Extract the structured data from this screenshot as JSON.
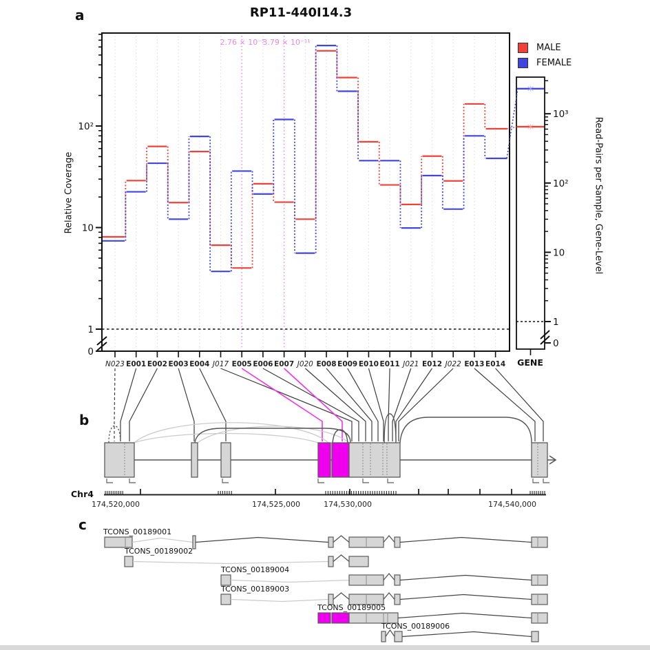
{
  "figure": {
    "panel_a": "a",
    "panel_b": "b",
    "panel_c": "c"
  },
  "chart_data": {
    "type": "line",
    "subtype": "exon-level step coverage, log y-scale, with gene-level side panel",
    "title": "RP11-440I14.3",
    "x_categories": [
      "N023",
      "E001",
      "E002",
      "E003",
      "E004",
      "J017",
      "E005",
      "E006",
      "E007",
      "J020",
      "E008",
      "E009",
      "E010",
      "E011",
      "J021",
      "E012",
      "J022",
      "E013",
      "E014"
    ],
    "italic_category_indices": [
      0,
      5,
      9,
      14,
      16
    ],
    "ylabel_left": "Relative Coverage",
    "ylabel_right": "Read-Pairs per Sample, Gene-Level",
    "yaxis_left_tick_labels": [
      "10²",
      "10",
      "1",
      "0"
    ],
    "yaxis_right_tick_labels": [
      "10³",
      "10²",
      "10",
      "1",
      "0"
    ],
    "ylim_left": [
      1,
      830
    ],
    "ylim_right": [
      1,
      3400
    ],
    "grid": "vertical dotted line per category; highlighted categories E005 and E007 in magenta",
    "reference_line_y": 1,
    "series": [
      {
        "name": "MALE",
        "color": "#ee4239",
        "values": [
          8.1,
          29,
          63,
          17.6,
          56,
          6.7,
          4,
          27,
          17.8,
          12.1,
          550,
          300,
          70,
          26.3,
          16.9,
          50.5,
          28.8,
          165,
          94
        ]
      },
      {
        "name": "FEMALE",
        "color": "#3f45dd",
        "values": [
          7.4,
          22.5,
          43,
          12.1,
          79,
          3.7,
          36,
          21.4,
          116,
          5.6,
          620,
          220,
          45.6,
          45.6,
          9.9,
          32.5,
          15.2,
          80,
          48
        ]
      }
    ],
    "gene_level": {
      "x_label": "GENE",
      "series": [
        {
          "name": "MALE",
          "value": 650
        },
        {
          "name": "FEMALE",
          "value": 2300
        }
      ]
    },
    "significance_labels": [
      {
        "text": "2.76 × 10⁻⁵",
        "at_category": "E005"
      },
      {
        "text": "3.79 × 10⁻¹¹",
        "at_category": "E007"
      }
    ]
  },
  "legend": {
    "items": [
      {
        "label": "MALE",
        "color": "#ee4239"
      },
      {
        "label": "FEMALE",
        "color": "#3f45dd"
      }
    ]
  },
  "genome_track": {
    "chromosome": "Chr4",
    "coordinate_labels": [
      "174,520,000",
      "174,525,000",
      "174,530,000",
      "174,540,000"
    ],
    "highlight_color": "#ee00ee"
  },
  "transcripts": {
    "labels": [
      "TCONS_00189001",
      "TCONS_00189002",
      "TCONS_00189004",
      "TCONS_00189003",
      "TCONS_00189005",
      "TCONS_00189006"
    ]
  }
}
